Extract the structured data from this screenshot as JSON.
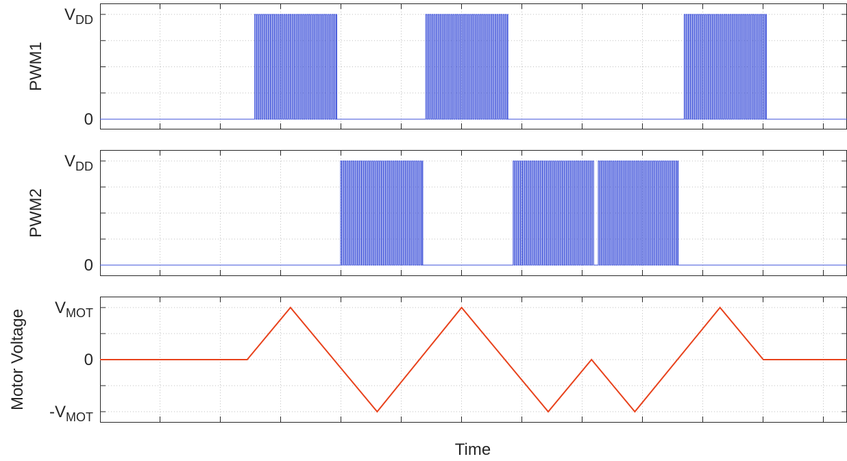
{
  "colors": {
    "pwm": "#3b4fd8",
    "motor": "#e8421c",
    "axis": "#262626",
    "grid": "#bfbfbf"
  },
  "chart_data": [
    {
      "type": "line",
      "name": "pwm1-panel",
      "ylabel": "PWM1",
      "xlabel": "",
      "ticks": [
        {
          "y": 0,
          "main": "0",
          "sub": ""
        },
        {
          "y": 1,
          "main": "V",
          "sub": "DD"
        }
      ],
      "ylim": [
        0,
        1
      ],
      "xlim": [
        0,
        1
      ],
      "grid": true,
      "pwm_bursts": [
        {
          "start": 0.207,
          "end": 0.317,
          "period": 0.0028,
          "duty": 0.5
        },
        {
          "start": 0.436,
          "end": 0.546,
          "period": 0.0028,
          "duty": 0.5
        },
        {
          "start": 0.782,
          "end": 0.892,
          "period": 0.0028,
          "duty": 0.5
        }
      ]
    },
    {
      "type": "line",
      "name": "pwm2-panel",
      "ylabel": "PWM2",
      "xlabel": "",
      "ticks": [
        {
          "y": 0,
          "main": "0",
          "sub": ""
        },
        {
          "y": 1,
          "main": "V",
          "sub": "DD"
        }
      ],
      "ylim": [
        0,
        1
      ],
      "xlim": [
        0,
        1
      ],
      "grid": true,
      "pwm_bursts": [
        {
          "start": 0.322,
          "end": 0.432,
          "period": 0.0028,
          "duty": 0.5
        },
        {
          "start": 0.553,
          "end": 0.661,
          "period": 0.0028,
          "duty": 0.5
        },
        {
          "start": 0.667,
          "end": 0.774,
          "period": 0.0028,
          "duty": 0.5
        }
      ]
    },
    {
      "type": "line",
      "name": "motor-panel",
      "ylabel": "Motor Voltage",
      "xlabel": "Time",
      "ticks": [
        {
          "y": -1,
          "main": "-V",
          "sub": "MOT"
        },
        {
          "y": 0,
          "main": "0",
          "sub": ""
        },
        {
          "y": 1,
          "main": "V",
          "sub": "MOT"
        }
      ],
      "ylim": [
        -1,
        1
      ],
      "xlim": [
        0,
        1
      ],
      "grid": true,
      "series": [
        {
          "x": [
            0,
            0.197,
            0.255,
            0.371,
            0.484,
            0.6,
            0.658,
            0.716,
            0.83,
            0.888,
            0.902,
            1
          ],
          "values": [
            0,
            0,
            1,
            -1,
            1,
            -1,
            0,
            -1,
            1,
            0,
            0,
            0
          ]
        }
      ]
    }
  ]
}
